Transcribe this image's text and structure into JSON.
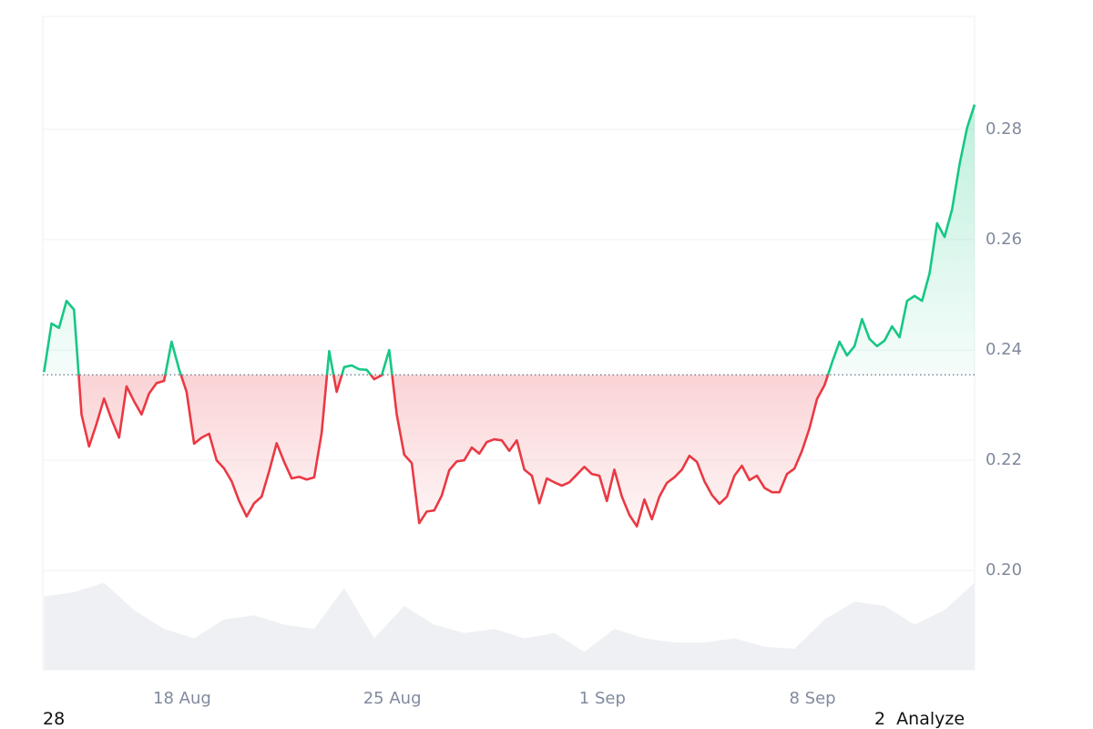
{
  "chart_data": {
    "type": "line",
    "x": [
      13.4,
      13.65,
      13.9,
      14.15,
      14.4,
      14.65,
      14.9,
      15.15,
      15.4,
      15.65,
      15.9,
      16.15,
      16.4,
      16.65,
      16.9,
      17.15,
      17.4,
      17.65,
      17.9,
      18.15,
      18.4,
      18.65,
      18.9,
      19.15,
      19.4,
      19.65,
      19.9,
      20.15,
      20.4,
      20.65,
      20.9,
      21.15,
      21.4,
      21.65,
      21.9,
      22.15,
      22.4,
      22.65,
      22.9,
      23.15,
      23.4,
      23.65,
      23.9,
      24.15,
      24.4,
      24.65,
      24.9,
      25.15,
      25.4,
      25.65,
      25.9,
      26.15,
      26.4,
      26.65,
      26.9,
      27.15,
      27.4,
      27.65,
      27.9,
      28.15,
      28.4,
      28.65,
      28.9,
      29.15,
      29.4,
      29.65,
      29.9,
      30.15,
      30.4,
      30.65,
      30.9,
      31.15,
      31.4,
      31.65,
      31.9,
      32.15,
      32.4,
      32.65,
      32.9,
      33.15,
      33.4,
      33.65,
      33.9,
      34.15,
      34.4,
      34.65,
      34.9,
      35.15,
      35.4,
      35.65,
      35.9,
      36.15,
      36.4,
      36.65,
      36.9,
      37.15,
      37.4,
      37.65,
      37.9,
      38.15,
      38.4,
      38.65,
      38.9,
      39.15,
      39.4,
      39.65,
      39.9,
      40.15,
      40.4,
      40.65,
      40.9,
      41.15,
      41.4,
      41.65,
      41.9,
      42.15,
      42.4,
      42.65,
      42.9,
      43.15,
      43.4,
      43.65,
      43.9,
      44.15,
      44.4
    ],
    "series": [
      {
        "color": "#16c784",
        "below_color": "#ea3943",
        "values": [
          0.236,
          0.2448,
          0.244,
          0.2489,
          0.2473,
          0.2283,
          0.2225,
          0.2266,
          0.2312,
          0.2274,
          0.2241,
          0.2334,
          0.2307,
          0.2283,
          0.2321,
          0.234,
          0.2344,
          0.2415,
          0.2365,
          0.2324,
          0.223,
          0.2241,
          0.2248,
          0.22,
          0.2185,
          0.2162,
          0.2126,
          0.2098,
          0.2122,
          0.2134,
          0.218,
          0.2231,
          0.2197,
          0.2167,
          0.217,
          0.2165,
          0.2169,
          0.225,
          0.2398,
          0.2324,
          0.2369,
          0.2372,
          0.2365,
          0.2364,
          0.2347,
          0.2354,
          0.24,
          0.2283,
          0.221,
          0.2195,
          0.2086,
          0.2107,
          0.2109,
          0.2136,
          0.2182,
          0.2198,
          0.22,
          0.2223,
          0.2212,
          0.2233,
          0.2238,
          0.2236,
          0.2217,
          0.2236,
          0.2183,
          0.2172,
          0.2122,
          0.2167,
          0.216,
          0.2154,
          0.216,
          0.2174,
          0.2188,
          0.2175,
          0.2172,
          0.2126,
          0.2183,
          0.2134,
          0.2101,
          0.208,
          0.2129,
          0.2093,
          0.2134,
          0.2159,
          0.2169,
          0.2183,
          0.2208,
          0.2197,
          0.2162,
          0.2137,
          0.2121,
          0.2134,
          0.2172,
          0.219,
          0.2164,
          0.2172,
          0.215,
          0.2142,
          0.2142,
          0.2175,
          0.2185,
          0.2217,
          0.2258,
          0.2311,
          0.2336,
          0.2377,
          0.2415,
          0.239,
          0.2407,
          0.2456,
          0.242,
          0.2407,
          0.2417,
          0.2443,
          0.2423,
          0.2489,
          0.2498,
          0.2489,
          0.2539,
          0.263,
          0.2605,
          0.2655,
          0.2737,
          0.2803,
          0.2845
        ]
      }
    ],
    "baseline": 0.2355,
    "volume": {
      "color": "#eef0f3",
      "lim": [
        0,
        100
      ],
      "x": [
        13.4,
        14.4,
        15.4,
        16.4,
        17.4,
        18.4,
        19.4,
        20.4,
        21.4,
        22.4,
        23.4,
        24.4,
        25.4,
        26.4,
        27.4,
        28.4,
        29.4,
        30.4,
        31.4,
        32.4,
        33.4,
        34.4,
        35.4,
        36.4,
        37.4,
        38.4,
        39.4,
        40.4,
        41.4,
        42.4,
        43.4,
        44.4
      ],
      "values": [
        70,
        74,
        83,
        57,
        39,
        30,
        48,
        52,
        43,
        39,
        78,
        30,
        61,
        43,
        35,
        39,
        30,
        35,
        17,
        39,
        30,
        26,
        26,
        30,
        22,
        20,
        48,
        65,
        61,
        43,
        57,
        83
      ]
    },
    "xlim": [
      13.36,
      44.4
    ],
    "xticks": [
      {
        "value": 18,
        "label": "18 Aug"
      },
      {
        "value": 25,
        "label": "25 Aug"
      },
      {
        "value": 32,
        "label": "1 Sep"
      },
      {
        "value": 39,
        "label": "8 Sep"
      }
    ],
    "ylim": [
      0.182,
      0.3005
    ],
    "yticks": [
      {
        "value": 0.2,
        "label": "0.20"
      },
      0.22,
      0.24,
      0.26,
      0.28
    ],
    "grid": true
  },
  "footer_left": "28",
  "footer_right": "2  Analyze"
}
